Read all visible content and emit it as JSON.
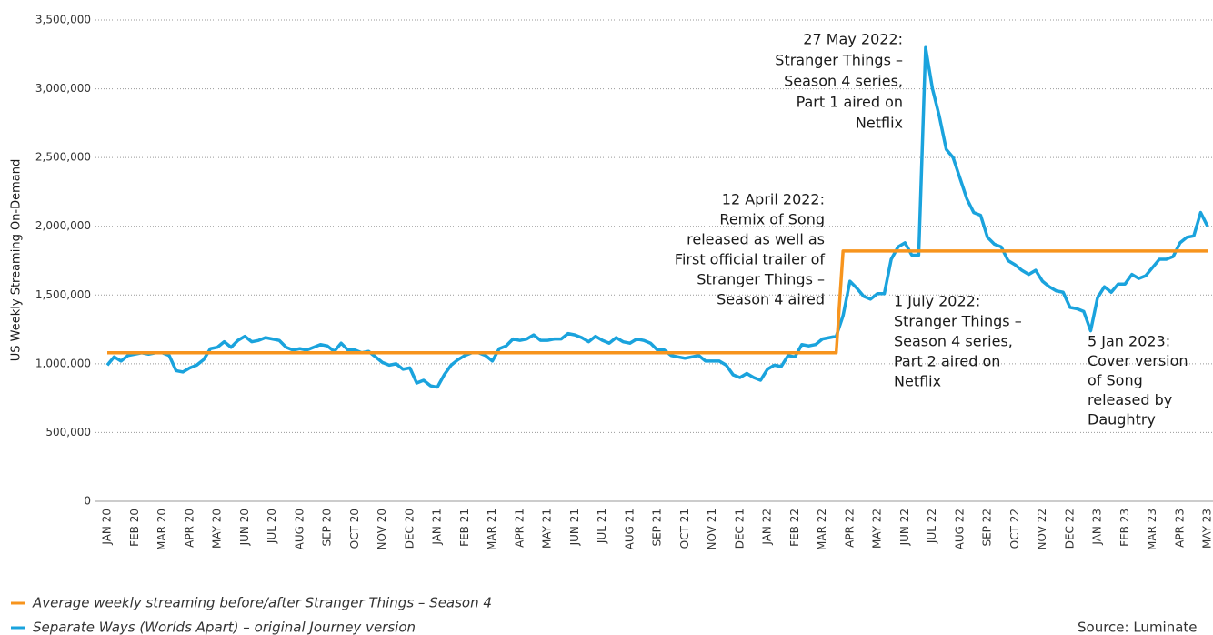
{
  "chart_data": {
    "type": "line",
    "y_axis_label": "US Weekly Streaming On-Demand",
    "categories": [
      "JAN 20",
      null,
      null,
      null,
      "FEB 20",
      null,
      null,
      null,
      "MAR 20",
      null,
      null,
      null,
      "APR 20",
      null,
      null,
      null,
      "MAY 20",
      null,
      null,
      null,
      "JUN 20",
      null,
      null,
      null,
      "JUL 20",
      null,
      null,
      null,
      "AUG 20",
      null,
      null,
      null,
      "SEP 20",
      null,
      null,
      null,
      "OCT 20",
      null,
      null,
      null,
      "NOV 20",
      null,
      null,
      null,
      "DEC 20",
      null,
      null,
      null,
      "JAN 21",
      null,
      null,
      null,
      "FEB 21",
      null,
      null,
      null,
      "MAR 21",
      null,
      null,
      null,
      "APR 21",
      null,
      null,
      null,
      "MAY 21",
      null,
      null,
      null,
      "JUN 21",
      null,
      null,
      null,
      "JUL 21",
      null,
      null,
      null,
      "AUG 21",
      null,
      null,
      null,
      "SEP 21",
      null,
      null,
      null,
      "OCT 21",
      null,
      null,
      null,
      "NOV 21",
      null,
      null,
      null,
      "DEC 21",
      null,
      null,
      null,
      "JAN 22",
      null,
      null,
      null,
      "FEB 22",
      null,
      null,
      null,
      "MAR 22",
      null,
      null,
      null,
      "APR 22",
      null,
      null,
      null,
      "MAY 22",
      null,
      null,
      null,
      "JUN 22",
      null,
      null,
      null,
      "JUL 22",
      null,
      null,
      null,
      "AUG 22",
      null,
      null,
      null,
      "SEP 22",
      null,
      null,
      null,
      "OCT 22",
      null,
      null,
      null,
      "NOV 22",
      null,
      null,
      null,
      "DEC 22",
      null,
      null,
      null,
      "JAN 23",
      null,
      null,
      null,
      "FEB 23",
      null,
      null,
      null,
      "MAR 23",
      null,
      null,
      null,
      "APR 23",
      null,
      null,
      null,
      "MAY 23"
    ],
    "series": [
      {
        "name": "Average weekly streaming before/after Stranger Things – Season 4",
        "color": "#f7941d",
        "values": [
          1080000,
          1080000,
          1080000,
          1080000,
          1080000,
          1080000,
          1080000,
          1080000,
          1080000,
          1080000,
          1080000,
          1080000,
          1080000,
          1080000,
          1080000,
          1080000,
          1080000,
          1080000,
          1080000,
          1080000,
          1080000,
          1080000,
          1080000,
          1080000,
          1080000,
          1080000,
          1080000,
          1080000,
          1080000,
          1080000,
          1080000,
          1080000,
          1080000,
          1080000,
          1080000,
          1080000,
          1080000,
          1080000,
          1080000,
          1080000,
          1080000,
          1080000,
          1080000,
          1080000,
          1080000,
          1080000,
          1080000,
          1080000,
          1080000,
          1080000,
          1080000,
          1080000,
          1080000,
          1080000,
          1080000,
          1080000,
          1080000,
          1080000,
          1080000,
          1080000,
          1080000,
          1080000,
          1080000,
          1080000,
          1080000,
          1080000,
          1080000,
          1080000,
          1080000,
          1080000,
          1080000,
          1080000,
          1080000,
          1080000,
          1080000,
          1080000,
          1080000,
          1080000,
          1080000,
          1080000,
          1080000,
          1080000,
          1080000,
          1080000,
          1080000,
          1080000,
          1080000,
          1080000,
          1080000,
          1080000,
          1080000,
          1080000,
          1080000,
          1080000,
          1080000,
          1080000,
          1080000,
          1080000,
          1080000,
          1080000,
          1080000,
          1080000,
          1080000,
          1080000,
          1080000,
          1080000,
          1080000,
          1820000,
          1820000,
          1820000,
          1820000,
          1820000,
          1820000,
          1820000,
          1820000,
          1820000,
          1820000,
          1820000,
          1820000,
          1820000,
          1820000,
          1820000,
          1820000,
          1820000,
          1820000,
          1820000,
          1820000,
          1820000,
          1820000,
          1820000,
          1820000,
          1820000,
          1820000,
          1820000,
          1820000,
          1820000,
          1820000,
          1820000,
          1820000,
          1820000,
          1820000,
          1820000,
          1820000,
          1820000,
          1820000,
          1820000,
          1820000,
          1820000,
          1820000,
          1820000,
          1820000,
          1820000,
          1820000,
          1820000,
          1820000,
          1820000,
          1820000,
          1820000,
          1820000,
          1820000,
          1820000
        ]
      },
      {
        "name": "Separate Ways (Worlds Apart) – original Journey version",
        "color": "#1aa3dd",
        "values": [
          990000,
          1050000,
          1020000,
          1060000,
          1070000,
          1080000,
          1070000,
          1080000,
          1080000,
          1060000,
          950000,
          940000,
          970000,
          990000,
          1030000,
          1110000,
          1120000,
          1160000,
          1120000,
          1170000,
          1200000,
          1160000,
          1170000,
          1190000,
          1180000,
          1170000,
          1120000,
          1100000,
          1110000,
          1100000,
          1120000,
          1140000,
          1130000,
          1090000,
          1150000,
          1100000,
          1100000,
          1080000,
          1090000,
          1050000,
          1010000,
          990000,
          1000000,
          960000,
          970000,
          860000,
          880000,
          840000,
          830000,
          920000,
          990000,
          1030000,
          1060000,
          1080000,
          1080000,
          1060000,
          1020000,
          1110000,
          1130000,
          1180000,
          1170000,
          1180000,
          1210000,
          1170000,
          1170000,
          1180000,
          1180000,
          1220000,
          1210000,
          1190000,
          1160000,
          1200000,
          1170000,
          1150000,
          1190000,
          1160000,
          1150000,
          1180000,
          1170000,
          1150000,
          1100000,
          1100000,
          1060000,
          1050000,
          1040000,
          1050000,
          1060000,
          1020000,
          1020000,
          1020000,
          990000,
          920000,
          900000,
          930000,
          900000,
          880000,
          960000,
          990000,
          980000,
          1060000,
          1050000,
          1140000,
          1130000,
          1140000,
          1180000,
          1190000,
          1200000,
          1350000,
          1600000,
          1550000,
          1490000,
          1470000,
          1510000,
          1510000,
          1760000,
          1850000,
          1880000,
          1790000,
          1790000,
          3300000,
          3000000,
          2800000,
          2560000,
          2500000,
          2350000,
          2200000,
          2100000,
          2080000,
          1920000,
          1870000,
          1850000,
          1750000,
          1720000,
          1680000,
          1650000,
          1680000,
          1600000,
          1560000,
          1530000,
          1520000,
          1410000,
          1400000,
          1380000,
          1240000,
          1480000,
          1560000,
          1520000,
          1580000,
          1580000,
          1650000,
          1620000,
          1640000,
          1700000,
          1760000,
          1760000,
          1780000,
          1880000,
          1920000,
          1930000,
          2100000,
          2000000
        ]
      }
    ],
    "ylim": [
      0,
      3500000
    ],
    "yticks": [
      0,
      {
        "value": 500000,
        "label": "500,000"
      },
      {
        "value": 1000000,
        "label": "1,000,000"
      },
      {
        "value": 1500000,
        "label": "1,500,000"
      },
      {
        "value": 2000000,
        "label": "2,000,000"
      },
      {
        "value": 2500000,
        "label": "2,500,000"
      },
      {
        "value": 3000000,
        "label": "3,000,000"
      },
      {
        "value": 3500000,
        "label": "3,500,000"
      }
    ],
    "grid": true,
    "annotations": [
      {
        "lines": [
          "27 May 2022:",
          "Stranger Things –",
          "Season 4 series,",
          "Part 1 aired on",
          "Netflix"
        ]
      },
      {
        "lines": [
          "12 April 2022:",
          "Remix of Song",
          "released as well as",
          "First official trailer of",
          "Stranger Things –",
          "Season 4 aired"
        ]
      },
      {
        "lines": [
          "1 July 2022:",
          "Stranger Things –",
          "Season 4 series,",
          "Part 2 aired on",
          "Netflix"
        ]
      },
      {
        "lines": [
          "5 Jan 2023:",
          "Cover version",
          "of Song",
          "released by",
          "Daughtry"
        ]
      }
    ],
    "source": "Source: Luminate"
  }
}
